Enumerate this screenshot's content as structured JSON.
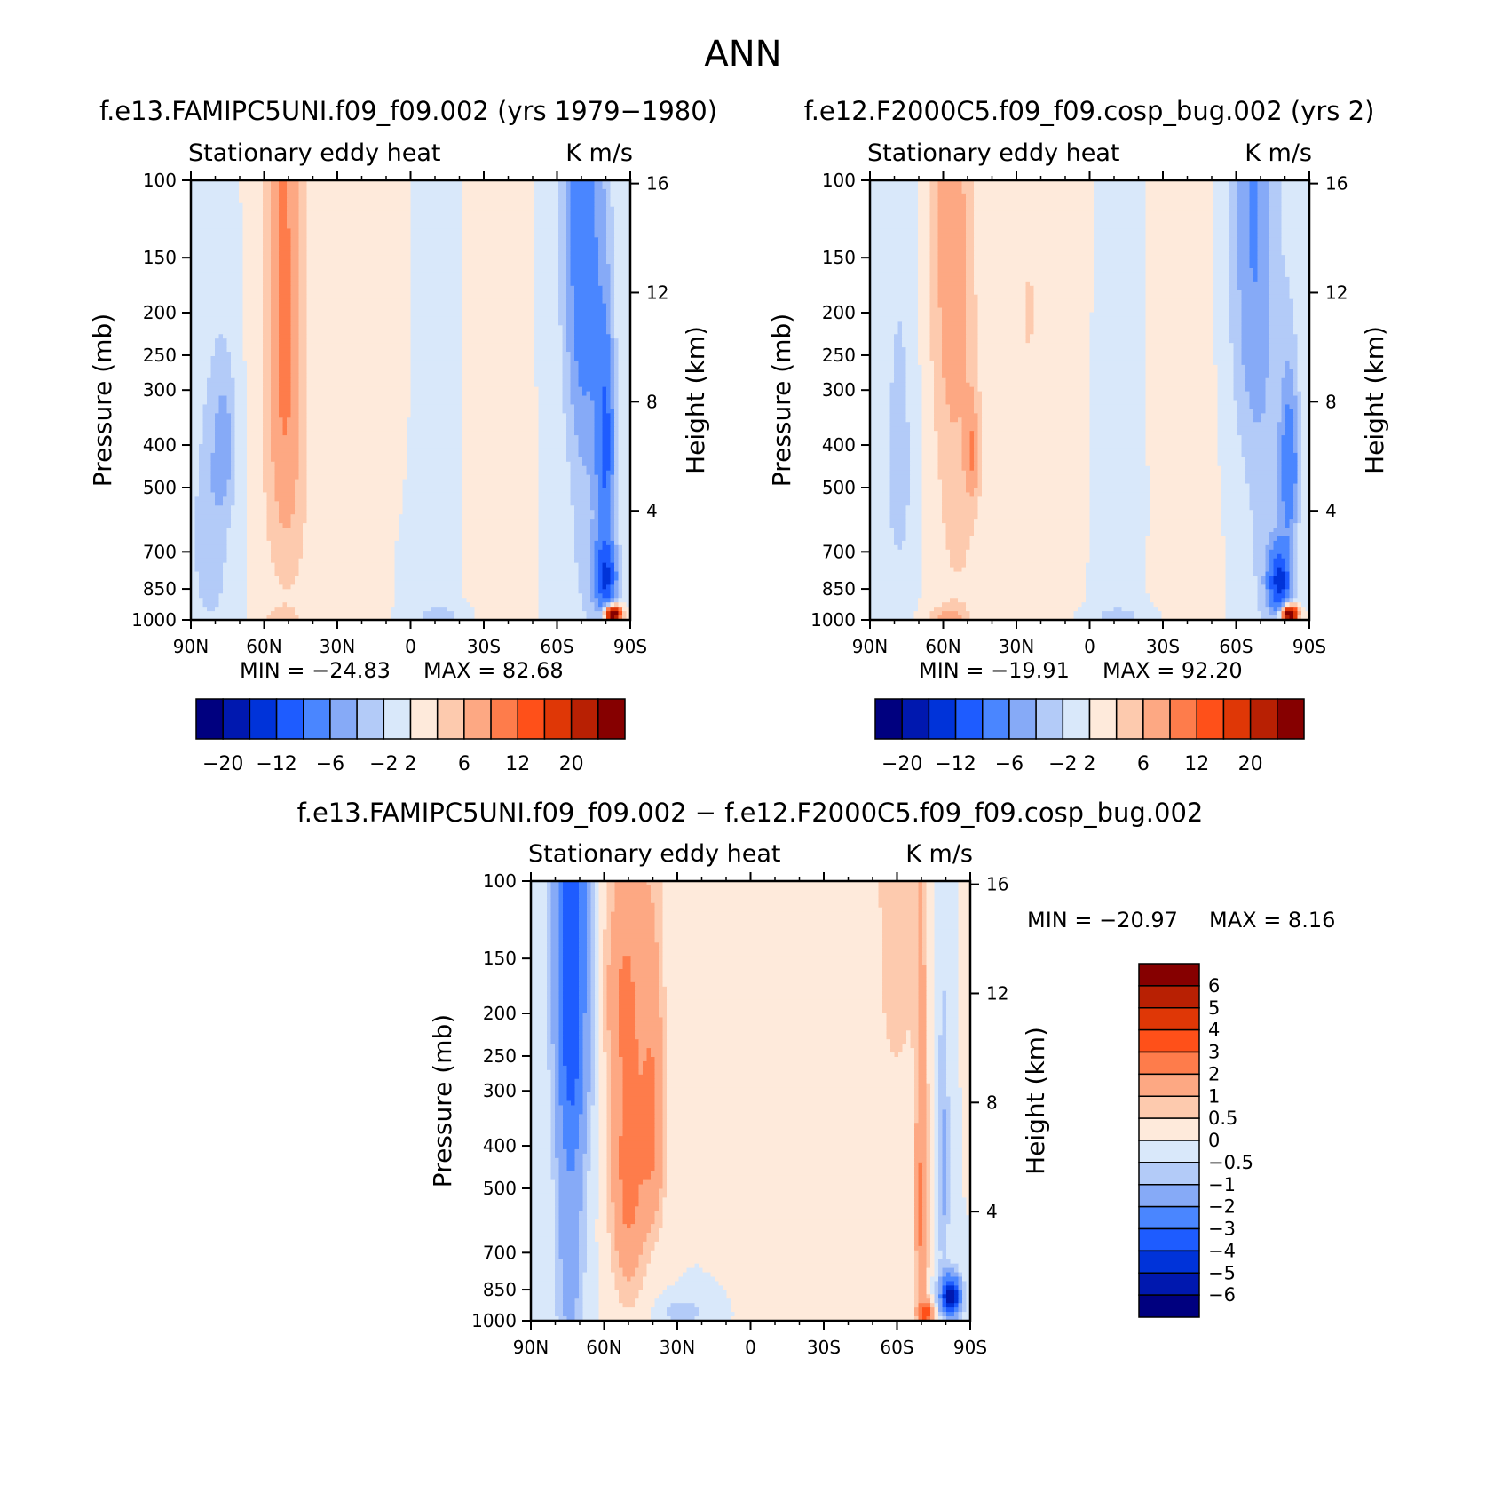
{
  "figure_title": "ANN",
  "chart_data": [
    {
      "type": "contour",
      "id": "model",
      "title": "f.e13.FAMIPC5UNI.f09_f09.002 (yrs 1979−1980)",
      "left_label": "Stationary  eddy  heat",
      "right_label": "K  m/s",
      "ylabel": "Pressure  (mb)",
      "ylabel2": "Height  (km)",
      "x_ticks": [
        "90N",
        "60N",
        "30N",
        "0",
        "30S",
        "60S",
        "90S"
      ],
      "x_values": [
        90,
        60,
        30,
        0,
        -30,
        -60,
        -90
      ],
      "y_ticks": [
        100,
        150,
        200,
        250,
        300,
        400,
        500,
        700,
        850,
        1000
      ],
      "ylim": [
        1000,
        100
      ],
      "height_ticks": [
        4,
        8,
        12,
        16
      ],
      "min_text": "MIN  =  −24.83",
      "max_text": "MAX  =    82.68",
      "min": -24.83,
      "max": 82.68,
      "features": [
        {
          "lat": 82,
          "p": 650,
          "sx": 8,
          "sy": 420,
          "amp": -3.5
        },
        {
          "lat": 76,
          "p": 400,
          "sx": 5,
          "sy": 160,
          "amp": -4
        },
        {
          "lat": 51,
          "p": 400,
          "sx": 9,
          "sy": 480,
          "amp": 4.8
        },
        {
          "lat": 53,
          "p": 100,
          "sx": 8,
          "sy": 300,
          "amp": 3
        },
        {
          "lat": 53,
          "p": 1000,
          "sx": 7,
          "sy": 60,
          "amp": 3
        },
        {
          "lat": 12,
          "p": 260,
          "sx": 10,
          "sy": 260,
          "amp": 1.6
        },
        {
          "lat": 25,
          "p": 850,
          "sx": 10,
          "sy": 150,
          "amp": 1.4
        },
        {
          "lat": -35,
          "p": 450,
          "sx": 8,
          "sy": 700,
          "amp": 1.6
        },
        {
          "lat": -8,
          "p": 500,
          "sx": 9,
          "sy": 450,
          "amp": -1.2
        },
        {
          "lat": -70,
          "p": 100,
          "sx": 8,
          "sy": 260,
          "amp": -6
        },
        {
          "lat": -72,
          "p": 450,
          "sx": 8,
          "sy": 700,
          "amp": -3
        },
        {
          "lat": -80,
          "p": 400,
          "sx": 4,
          "sy": 220,
          "amp": -9
        },
        {
          "lat": -80,
          "p": 800,
          "sx": 5,
          "sy": 160,
          "amp": -12
        },
        {
          "lat": -83,
          "p": 970,
          "sx": 3,
          "sy": 40,
          "amp": 30
        },
        {
          "lat": -12,
          "p": 980,
          "sx": 10,
          "sy": 50,
          "amp": -3
        }
      ]
    },
    {
      "type": "contour",
      "id": "control",
      "title": "f.e12.F2000C5.f09_f09.cosp_bug.002 (yrs 2)",
      "left_label": "Stationary  eddy  heat",
      "right_label": "K  m/s",
      "ylabel": "Pressure  (mb)",
      "ylabel2": "Height  (km)",
      "x_ticks": [
        "90N",
        "60N",
        "30N",
        "0",
        "30S",
        "60S",
        "90S"
      ],
      "x_values": [
        90,
        60,
        30,
        0,
        -30,
        -60,
        -90
      ],
      "y_ticks": [
        100,
        150,
        200,
        250,
        300,
        400,
        500,
        700,
        850,
        1000
      ],
      "ylim": [
        1000,
        100
      ],
      "height_ticks": [
        4,
        8,
        12,
        16
      ],
      "min_text": "MIN  =  −19.91",
      "max_text": "MAX  =    92.20",
      "min": -19.91,
      "max": 92.2,
      "features": [
        {
          "lat": 78,
          "p": 450,
          "sx": 7,
          "sy": 420,
          "amp": -2.8
        },
        {
          "lat": 54,
          "p": 400,
          "sx": 10,
          "sy": 600,
          "amp": 3
        },
        {
          "lat": 58,
          "p": 100,
          "sx": 8,
          "sy": 250,
          "amp": 3.4
        },
        {
          "lat": 48,
          "p": 420,
          "sx": 3,
          "sy": 120,
          "amp": 4.2
        },
        {
          "lat": 58,
          "p": 1000,
          "sx": 8,
          "sy": 70,
          "amp": 4.5
        },
        {
          "lat": 25,
          "p": 200,
          "sx": 3,
          "sy": 50,
          "amp": 3
        },
        {
          "lat": 10,
          "p": 350,
          "sx": 8,
          "sy": 400,
          "amp": 1.2
        },
        {
          "lat": -40,
          "p": 400,
          "sx": 9,
          "sy": 700,
          "amp": 1.5
        },
        {
          "lat": -10,
          "p": 500,
          "sx": 8,
          "sy": 400,
          "amp": -1.1
        },
        {
          "lat": -66,
          "p": 100,
          "sx": 9,
          "sy": 280,
          "amp": -5
        },
        {
          "lat": -72,
          "p": 550,
          "sx": 9,
          "sy": 700,
          "amp": -2.5
        },
        {
          "lat": -82,
          "p": 450,
          "sx": 4,
          "sy": 200,
          "amp": -8
        },
        {
          "lat": -78,
          "p": 820,
          "sx": 5,
          "sy": 150,
          "amp": -12
        },
        {
          "lat": -82,
          "p": 970,
          "sx": 3,
          "sy": 40,
          "amp": 30
        },
        {
          "lat": -12,
          "p": 980,
          "sx": 10,
          "sy": 50,
          "amp": -3
        }
      ]
    },
    {
      "type": "contour",
      "id": "difference",
      "title": "f.e13.FAMIPC5UNI.f09_f09.002  −  f.e12.F2000C5.f09_f09.cosp_bug.002",
      "left_label": "Stationary  eddy  heat",
      "right_label": "K  m/s",
      "ylabel": "Pressure  (mb)",
      "ylabel2": "Height  (km)",
      "x_ticks": [
        "90N",
        "60N",
        "30N",
        "0",
        "30S",
        "60S",
        "90S"
      ],
      "x_values": [
        90,
        60,
        30,
        0,
        -30,
        -60,
        -90
      ],
      "y_ticks": [
        100,
        150,
        200,
        250,
        300,
        400,
        500,
        700,
        850,
        1000
      ],
      "ylim": [
        1000,
        100
      ],
      "height_ticks": [
        4,
        8,
        12,
        16
      ],
      "min_text": "MIN  =  −20.97",
      "max_text": "MAX  =      8.16",
      "min": -20.97,
      "max": 8.16,
      "features": [
        {
          "lat": 73,
          "p": 140,
          "sx": 7,
          "sy": 250,
          "amp": -3
        },
        {
          "lat": 74,
          "p": 600,
          "sx": 6,
          "sy": 700,
          "amp": -1.5
        },
        {
          "lat": 50,
          "p": 430,
          "sx": 7,
          "sy": 400,
          "amp": 2.5
        },
        {
          "lat": 40,
          "p": 350,
          "sx": 5,
          "sy": 250,
          "amp": 2
        },
        {
          "lat": 55,
          "p": 180,
          "sx": 8,
          "sy": 80,
          "amp": 0.8
        },
        {
          "lat": 10,
          "p": 200,
          "sx": 6,
          "sy": 150,
          "amp": 0.4
        },
        {
          "lat": -20,
          "p": 500,
          "sx": 12,
          "sy": 600,
          "amp": 0.4
        },
        {
          "lat": -60,
          "p": 100,
          "sx": 10,
          "sy": 220,
          "amp": 0.8
        },
        {
          "lat": -70,
          "p": 560,
          "sx": 2.5,
          "sy": 450,
          "amp": 2.2
        },
        {
          "lat": -79,
          "p": 450,
          "sx": 2.5,
          "sy": 300,
          "amp": -1.2
        },
        {
          "lat": -82,
          "p": 880,
          "sx": 4,
          "sy": 90,
          "amp": -6
        },
        {
          "lat": -72,
          "p": 960,
          "sx": 3,
          "sy": 50,
          "amp": 3.5
        },
        {
          "lat": 28,
          "p": 960,
          "sx": 8,
          "sy": 60,
          "amp": -1
        }
      ]
    }
  ],
  "colorbars": [
    {
      "id": "abs",
      "orientation": "horizontal",
      "colors": [
        "#00007f",
        "#0018af",
        "#0033d9",
        "#1e5cff",
        "#4a86ff",
        "#86aaf7",
        "#b3cbf8",
        "#d9e8fa",
        "#feeadb",
        "#fdcaae",
        "#fda883",
        "#fe7c4b",
        "#ff5019",
        "#df3706",
        "#b82003",
        "#860000"
      ],
      "labels": [
        "−20",
        "−12",
        "−6",
        "−2",
        "2",
        "6",
        "12",
        "20"
      ],
      "bounds": [
        -20,
        -16,
        -12,
        -9,
        -6,
        -4,
        -2,
        0,
        2,
        4,
        6,
        9,
        12,
        16,
        20
      ]
    },
    {
      "id": "diff",
      "orientation": "vertical",
      "colors": [
        "#00007f",
        "#0018af",
        "#0033d9",
        "#1e5cff",
        "#4a86ff",
        "#86aaf7",
        "#b3cbf8",
        "#d9e8fa",
        "#feeadb",
        "#fdcaae",
        "#fda883",
        "#fe7c4b",
        "#ff5019",
        "#df3706",
        "#b82003",
        "#860000"
      ],
      "labels": [
        "6",
        "5",
        "4",
        "3",
        "2",
        "1",
        "0.5",
        "0",
        "−0.5",
        "−1",
        "−2",
        "−3",
        "−4",
        "−5",
        "−6"
      ],
      "bounds": [
        -6,
        -5,
        -4,
        -3,
        -2,
        -1,
        -0.5,
        0,
        0.5,
        1,
        2,
        3,
        4,
        5,
        6
      ]
    }
  ]
}
